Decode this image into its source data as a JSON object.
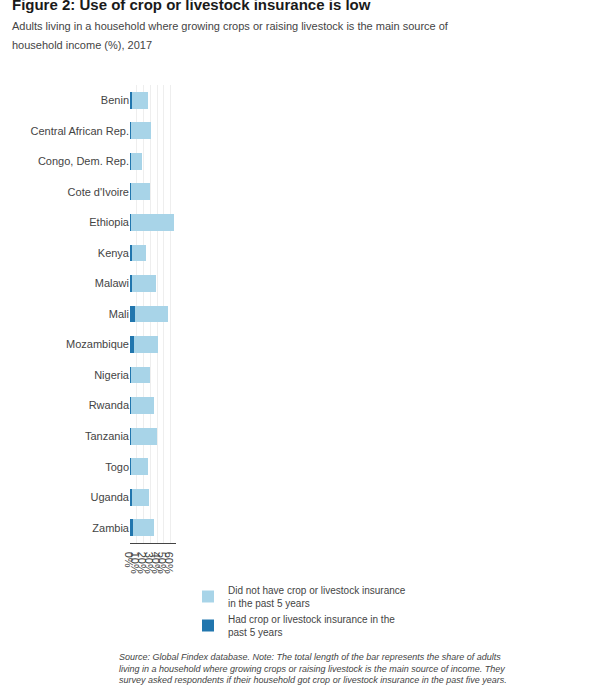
{
  "chart_data": {
    "type": "bar",
    "orientation": "horizontal",
    "stacked": true,
    "title": "Figure 2: Use of crop or livestock insurance is low",
    "subtitle": "Adults living in a household where growing crops or raising livestock is the main source of\nhousehold income (%), 2017",
    "annotations": [
      "Source: Global Findex database. Note: The total length of the bar represents the share of adults\nliving in a household where growing crops or raising livestock is the main source of income. They\nsurvey asked respondents if their household got crop or livestock insurance in the past five years."
    ],
    "categories": [
      "Benin",
      "Central African Rep.",
      "Congo, Dem. Rep.",
      "Cote d'Ivoire",
      "Ethiopia",
      "Kenya",
      "Malawi",
      "Mali",
      "Mozambique",
      "Nigeria",
      "Rwanda",
      "Tanzania",
      "Togo",
      "Uganda",
      "Zambia"
    ],
    "series": [
      {
        "name": "Had crop or livestock insurance in the\npast 5 years",
        "color": "#2176ae",
        "values": [
          3,
          2,
          1,
          2,
          1,
          3,
          3,
          8,
          6,
          2,
          2,
          2,
          1,
          3,
          5
        ]
      },
      {
        "name": "Did not have crop or livestock insurance\nin the past 5 years",
        "color": "#a8d4e8",
        "values": [
          24,
          29,
          16,
          27,
          64,
          20,
          36,
          48,
          35,
          27,
          34,
          38,
          25,
          25,
          30
        ]
      }
    ],
    "xlim": [
      0,
      68
    ],
    "xticks": [
      {
        "value": 0,
        "label": "0%"
      },
      {
        "value": 10,
        "label": "10%"
      },
      {
        "value": 20,
        "label": "20%"
      },
      {
        "value": 30,
        "label": "30%"
      },
      {
        "value": 40,
        "label": "40%"
      },
      {
        "value": 50,
        "label": "50%"
      },
      {
        "value": 60,
        "label": "60%"
      }
    ],
    "grid": true,
    "legend": "bottom"
  }
}
